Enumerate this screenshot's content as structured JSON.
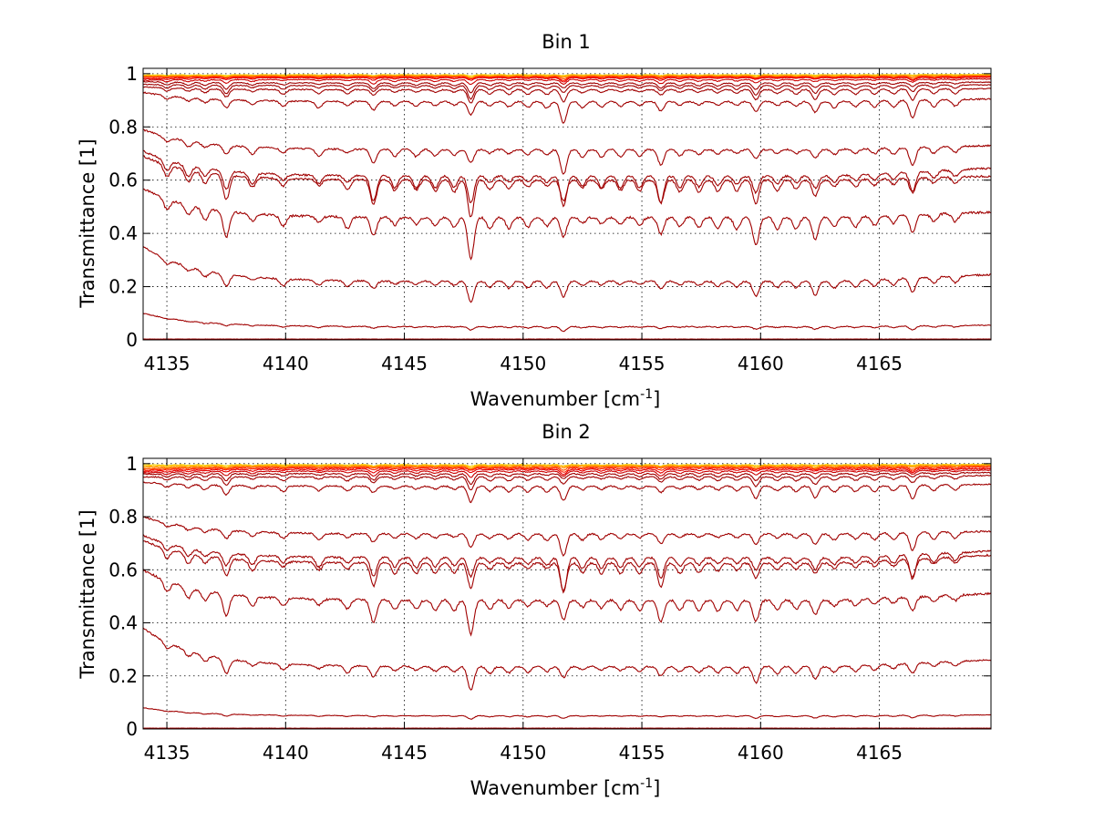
{
  "chart_data": [
    {
      "type": "line",
      "title": "Bin 1",
      "xlabel": "Wavenumber [cm",
      "xlabel_sup": "-1",
      "xlabel_close": "]",
      "ylabel": "Transmittance [1]",
      "xlim": [
        4134,
        4169.7
      ],
      "ylim": [
        0,
        1.02
      ],
      "xticks": [
        4135,
        4140,
        4145,
        4150,
        4155,
        4160,
        4165
      ],
      "yticks": [
        0,
        0.2,
        0.4,
        0.6,
        0.8,
        1
      ],
      "grid": true,
      "series": [
        {
          "start": 0.995,
          "base": 0.996,
          "end": 0.997,
          "dip": 0.002,
          "noise": 0.002,
          "color": "#ffd200"
        },
        {
          "start": 0.992,
          "base": 0.994,
          "end": 0.995,
          "dip": 0.003,
          "noise": 0.002,
          "color": "#ffb000"
        },
        {
          "start": 0.99,
          "base": 0.992,
          "end": 0.993,
          "dip": 0.004,
          "noise": 0.002,
          "color": "#ff8c00"
        },
        {
          "start": 0.988,
          "base": 0.99,
          "end": 0.991,
          "dip": 0.005,
          "noise": 0.002,
          "color": "#ff5000"
        },
        {
          "start": 0.985,
          "base": 0.988,
          "end": 0.989,
          "dip": 0.006,
          "noise": 0.002,
          "color": "#ff2000"
        },
        {
          "start": 0.98,
          "base": 0.985,
          "end": 0.986,
          "dip": 0.007,
          "noise": 0.002,
          "color": "#e60000"
        },
        {
          "start": 0.975,
          "base": 0.978,
          "end": 0.98,
          "dip": 0.01,
          "noise": 0.003,
          "color": "#cc0000"
        },
        {
          "start": 0.97,
          "base": 0.965,
          "end": 0.968,
          "dip": 0.015,
          "noise": 0.003,
          "color": "#a00000"
        },
        {
          "start": 0.96,
          "base": 0.955,
          "end": 0.958,
          "dip": 0.02,
          "noise": 0.003,
          "color": "#a00000"
        },
        {
          "start": 0.95,
          "base": 0.94,
          "end": 0.944,
          "dip": 0.025,
          "noise": 0.004,
          "color": "#a00000"
        },
        {
          "start": 0.93,
          "base": 0.895,
          "end": 0.905,
          "dip": 0.035,
          "noise": 0.005,
          "color": "#a00000"
        },
        {
          "start": 0.79,
          "base": 0.715,
          "end": 0.73,
          "dip": 0.04,
          "noise": 0.006,
          "color": "#a00000"
        },
        {
          "start": 0.71,
          "base": 0.615,
          "end": 0.645,
          "dip": 0.06,
          "noise": 0.007,
          "color": "#a00000"
        },
        {
          "start": 0.69,
          "base": 0.6,
          "end": 0.615,
          "dip": 0.06,
          "noise": 0.007,
          "color": "#a00000"
        },
        {
          "start": 0.57,
          "base": 0.46,
          "end": 0.48,
          "dip": 0.06,
          "noise": 0.008,
          "color": "#a00000"
        },
        {
          "start": 0.35,
          "base": 0.22,
          "end": 0.245,
          "dip": 0.035,
          "noise": 0.006,
          "color": "#a00000"
        },
        {
          "start": 0.1,
          "base": 0.05,
          "end": 0.055,
          "dip": 0.008,
          "noise": 0.003,
          "color": "#a00000"
        },
        {
          "start": 0.003,
          "base": 0.003,
          "end": 0.003,
          "dip": 0.0,
          "noise": 0.001,
          "color": "#a00000"
        }
      ]
    },
    {
      "type": "line",
      "title": "Bin 2",
      "xlabel": "Wavenumber [cm",
      "xlabel_sup": "-1",
      "xlabel_close": "]",
      "ylabel": "Transmittance [1]",
      "xlim": [
        4134,
        4169.7
      ],
      "ylim": [
        0,
        1.02
      ],
      "xticks": [
        4135,
        4140,
        4145,
        4150,
        4155,
        4160,
        4165
      ],
      "yticks": [
        0,
        0.2,
        0.4,
        0.6,
        0.8,
        1
      ],
      "grid": true,
      "series": [
        {
          "start": 0.995,
          "base": 0.996,
          "end": 0.997,
          "dip": 0.003,
          "noise": 0.003,
          "color": "#ffd200"
        },
        {
          "start": 0.99,
          "base": 0.994,
          "end": 0.995,
          "dip": 0.004,
          "noise": 0.003,
          "color": "#ffb000"
        },
        {
          "start": 0.985,
          "base": 0.991,
          "end": 0.993,
          "dip": 0.005,
          "noise": 0.003,
          "color": "#ff8c00"
        },
        {
          "start": 0.98,
          "base": 0.988,
          "end": 0.99,
          "dip": 0.006,
          "noise": 0.003,
          "color": "#ff5000"
        },
        {
          "start": 0.975,
          "base": 0.984,
          "end": 0.986,
          "dip": 0.007,
          "noise": 0.003,
          "color": "#ff2000"
        },
        {
          "start": 0.97,
          "base": 0.979,
          "end": 0.981,
          "dip": 0.009,
          "noise": 0.003,
          "color": "#e60000"
        },
        {
          "start": 0.965,
          "base": 0.972,
          "end": 0.975,
          "dip": 0.012,
          "noise": 0.003,
          "color": "#cc0000"
        },
        {
          "start": 0.96,
          "base": 0.962,
          "end": 0.966,
          "dip": 0.016,
          "noise": 0.004,
          "color": "#a00000"
        },
        {
          "start": 0.95,
          "base": 0.95,
          "end": 0.955,
          "dip": 0.02,
          "noise": 0.004,
          "color": "#a00000"
        },
        {
          "start": 0.93,
          "base": 0.915,
          "end": 0.922,
          "dip": 0.03,
          "noise": 0.005,
          "color": "#a00000"
        },
        {
          "start": 0.8,
          "base": 0.735,
          "end": 0.745,
          "dip": 0.035,
          "noise": 0.006,
          "color": "#a00000"
        },
        {
          "start": 0.73,
          "base": 0.645,
          "end": 0.67,
          "dip": 0.055,
          "noise": 0.007,
          "color": "#a00000"
        },
        {
          "start": 0.71,
          "base": 0.625,
          "end": 0.655,
          "dip": 0.055,
          "noise": 0.007,
          "color": "#a00000"
        },
        {
          "start": 0.6,
          "base": 0.485,
          "end": 0.51,
          "dip": 0.055,
          "noise": 0.008,
          "color": "#a00000"
        },
        {
          "start": 0.38,
          "base": 0.235,
          "end": 0.26,
          "dip": 0.035,
          "noise": 0.006,
          "color": "#a00000"
        },
        {
          "start": 0.08,
          "base": 0.05,
          "end": 0.053,
          "dip": 0.006,
          "noise": 0.002,
          "color": "#a00000"
        },
        {
          "start": 0.003,
          "base": 0.003,
          "end": 0.003,
          "dip": 0.0,
          "noise": 0.001,
          "color": "#a00000"
        }
      ]
    }
  ]
}
